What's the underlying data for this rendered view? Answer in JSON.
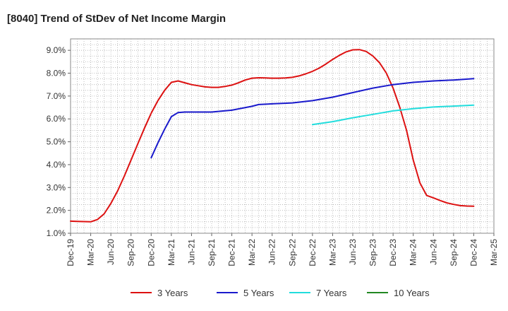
{
  "chart_data": {
    "type": "line",
    "title": "[8040]  Trend of StDev of Net Income Margin",
    "xlabel": "",
    "ylabel": "",
    "x_ticks": [
      "Dec-19",
      "Mar-20",
      "Jun-20",
      "Sep-20",
      "Dec-20",
      "Mar-21",
      "Jun-21",
      "Sep-21",
      "Dec-21",
      "Mar-22",
      "Jun-22",
      "Sep-22",
      "Dec-22",
      "Mar-23",
      "Jun-23",
      "Sep-23",
      "Dec-23",
      "Mar-24",
      "Jun-24",
      "Sep-24",
      "Dec-24",
      "Mar-25"
    ],
    "y_ticks": [
      "1.0%",
      "2.0%",
      "3.0%",
      "4.0%",
      "5.0%",
      "6.0%",
      "7.0%",
      "8.0%",
      "9.0%"
    ],
    "ylim": [
      1.0,
      9.5
    ],
    "grid": true,
    "legend_position": "bottom",
    "series": [
      {
        "name": "3 Years",
        "color": "#dd1111",
        "points": [
          [
            "Dec-19",
            1.53
          ],
          [
            "Jan-20",
            1.52
          ],
          [
            "Feb-20",
            1.51
          ],
          [
            "Mar-20",
            1.5
          ],
          [
            "Apr-20",
            1.6
          ],
          [
            "May-20",
            1.85
          ],
          [
            "Jun-20",
            2.3
          ],
          [
            "Jul-20",
            2.85
          ],
          [
            "Aug-20",
            3.5
          ],
          [
            "Sep-20",
            4.2
          ],
          [
            "Oct-20",
            4.9
          ],
          [
            "Nov-20",
            5.6
          ],
          [
            "Dec-20",
            6.25
          ],
          [
            "Jan-21",
            6.8
          ],
          [
            "Feb-21",
            7.25
          ],
          [
            "Mar-21",
            7.6
          ],
          [
            "Apr-21",
            7.66
          ],
          [
            "May-21",
            7.58
          ],
          [
            "Jun-21",
            7.5
          ],
          [
            "Jul-21",
            7.45
          ],
          [
            "Aug-21",
            7.4
          ],
          [
            "Sep-21",
            7.38
          ],
          [
            "Oct-21",
            7.38
          ],
          [
            "Nov-21",
            7.42
          ],
          [
            "Dec-21",
            7.48
          ],
          [
            "Jan-22",
            7.58
          ],
          [
            "Feb-22",
            7.7
          ],
          [
            "Mar-22",
            7.78
          ],
          [
            "Apr-22",
            7.8
          ],
          [
            "May-22",
            7.79
          ],
          [
            "Jun-22",
            7.78
          ],
          [
            "Jul-22",
            7.78
          ],
          [
            "Aug-22",
            7.79
          ],
          [
            "Sep-22",
            7.82
          ],
          [
            "Oct-22",
            7.88
          ],
          [
            "Nov-22",
            7.97
          ],
          [
            "Dec-22",
            8.08
          ],
          [
            "Jan-23",
            8.22
          ],
          [
            "Feb-23",
            8.4
          ],
          [
            "Mar-23",
            8.6
          ],
          [
            "Apr-23",
            8.78
          ],
          [
            "May-23",
            8.93
          ],
          [
            "Jun-23",
            9.02
          ],
          [
            "Jul-23",
            9.03
          ],
          [
            "Aug-23",
            8.95
          ],
          [
            "Sep-23",
            8.75
          ],
          [
            "Oct-23",
            8.45
          ],
          [
            "Nov-23",
            8.0
          ],
          [
            "Dec-23",
            7.35
          ],
          [
            "Jan-24",
            6.5
          ],
          [
            "Feb-24",
            5.5
          ],
          [
            "Mar-24",
            4.2
          ],
          [
            "Apr-24",
            3.2
          ],
          [
            "May-24",
            2.65
          ],
          [
            "Jun-24",
            2.55
          ],
          [
            "Jul-24",
            2.43
          ],
          [
            "Aug-24",
            2.33
          ],
          [
            "Sep-24",
            2.26
          ],
          [
            "Oct-24",
            2.21
          ],
          [
            "Nov-24",
            2.19
          ],
          [
            "Dec-24",
            2.18
          ]
        ]
      },
      {
        "name": "5 Years",
        "color": "#1a1acc",
        "points": [
          [
            "Dec-20",
            4.3
          ],
          [
            "Jan-21",
            4.95
          ],
          [
            "Feb-21",
            5.55
          ],
          [
            "Mar-21",
            6.1
          ],
          [
            "Apr-21",
            6.28
          ],
          [
            "May-21",
            6.3
          ],
          [
            "Jun-21",
            6.3
          ],
          [
            "Sep-21",
            6.3
          ],
          [
            "Dec-21",
            6.38
          ],
          [
            "Mar-22",
            6.55
          ],
          [
            "Apr-22",
            6.63
          ],
          [
            "Jun-22",
            6.66
          ],
          [
            "Sep-22",
            6.7
          ],
          [
            "Dec-22",
            6.8
          ],
          [
            "Mar-23",
            6.95
          ],
          [
            "Jun-23",
            7.15
          ],
          [
            "Sep-23",
            7.35
          ],
          [
            "Dec-23",
            7.5
          ],
          [
            "Mar-24",
            7.6
          ],
          [
            "Jun-24",
            7.66
          ],
          [
            "Sep-24",
            7.7
          ],
          [
            "Dec-24",
            7.76
          ]
        ]
      },
      {
        "name": "7 Years",
        "color": "#22dddd",
        "points": [
          [
            "Dec-22",
            5.75
          ],
          [
            "Mar-23",
            5.88
          ],
          [
            "Jun-23",
            6.05
          ],
          [
            "Sep-23",
            6.2
          ],
          [
            "Dec-23",
            6.35
          ],
          [
            "Mar-24",
            6.45
          ],
          [
            "Jun-24",
            6.52
          ],
          [
            "Sep-24",
            6.56
          ],
          [
            "Dec-24",
            6.6
          ]
        ]
      },
      {
        "name": "10 Years",
        "color": "#228822",
        "points": []
      }
    ]
  }
}
